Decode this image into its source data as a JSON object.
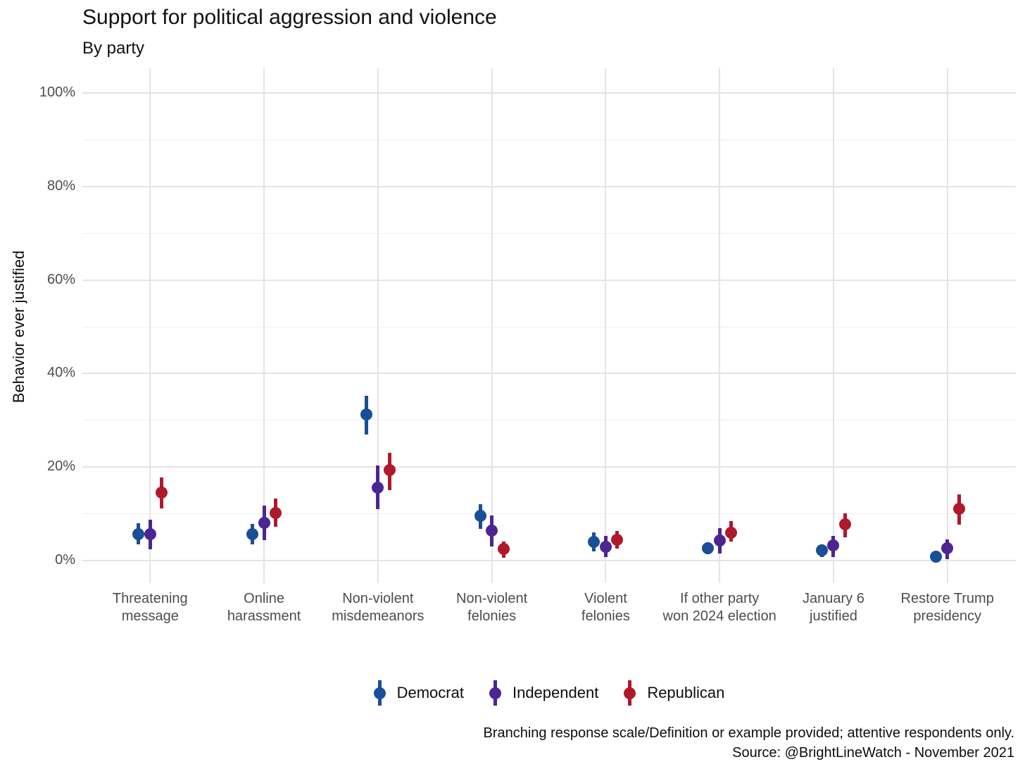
{
  "chart": {
    "title": "Support for political aggression and violence",
    "subtitle": "By party",
    "y_axis_title": "Behavior ever justified",
    "caption_line1": "Branching response scale/Definition or example provided; attentive respondents only.",
    "caption_line2": "Source: @BrightLineWatch - November 2021"
  },
  "chart_data": {
    "type": "scatter",
    "subtype": "pointrange-dodged",
    "title": "Support for political aggression and violence",
    "subtitle": "By party",
    "ylabel": "Behavior ever justified",
    "xlabel": "",
    "ylim": [
      0,
      100
    ],
    "grid": "horizontal major+minor, vertical per category",
    "legend_position": "bottom",
    "categories": [
      "Threatening message",
      "Online harassment",
      "Non-violent misdemeanors",
      "Non-violent felonies",
      "Violent felonies",
      "If other party won 2024 election",
      "January 6 justified",
      "Restore Trump presidency"
    ],
    "label_lines": [
      [
        "Threatening",
        "message"
      ],
      [
        "Online",
        "harassment"
      ],
      [
        "Non-violent",
        "misdemeanors"
      ],
      [
        "Non-violent",
        "felonies"
      ],
      [
        "Violent",
        "felonies"
      ],
      [
        "If other party",
        "won 2024 election"
      ],
      [
        "January 6",
        "justified"
      ],
      [
        "Restore Trump",
        "presidency"
      ]
    ],
    "y_ticks": [
      {
        "v": 0,
        "label": "0%"
      },
      {
        "v": 20,
        "label": "20%"
      },
      {
        "v": 40,
        "label": "40%"
      },
      {
        "v": 60,
        "label": "60%"
      },
      {
        "v": 80,
        "label": "80%"
      },
      {
        "v": 100,
        "label": "100%"
      }
    ],
    "y_minor_ticks": [
      10,
      30,
      50,
      70,
      90
    ],
    "series": [
      {
        "name": "Democrat",
        "color": "#1A4E96",
        "values": [
          5.7,
          5.7,
          31.2,
          9.6,
          4.0,
          2.7,
          2.2,
          0.9
        ],
        "ci_low": [
          3.4,
          3.5,
          27.0,
          6.8,
          2.0,
          1.3,
          0.8,
          0.3
        ],
        "ci_high": [
          8.0,
          7.8,
          35.3,
          12.0,
          6.0,
          3.9,
          3.4,
          1.6
        ]
      },
      {
        "name": "Independent",
        "color": "#4C2592",
        "values": [
          5.6,
          8.0,
          15.6,
          6.4,
          2.9,
          4.3,
          3.3,
          2.6
        ],
        "ci_low": [
          2.4,
          4.4,
          11.0,
          3.0,
          0.7,
          1.5,
          0.8,
          0.3
        ],
        "ci_high": [
          8.7,
          11.7,
          20.3,
          9.7,
          5.2,
          6.9,
          5.3,
          4.5
        ]
      },
      {
        "name": "Republican",
        "color": "#B0182B",
        "values": [
          14.5,
          10.2,
          19.3,
          2.5,
          4.5,
          5.9,
          7.7,
          11.1
        ],
        "ci_low": [
          11.2,
          7.2,
          15.1,
          0.6,
          2.5,
          4.0,
          5.0,
          7.7
        ],
        "ci_high": [
          17.7,
          13.3,
          23.0,
          4.1,
          6.4,
          8.4,
          10.1,
          14.2
        ]
      }
    ]
  }
}
